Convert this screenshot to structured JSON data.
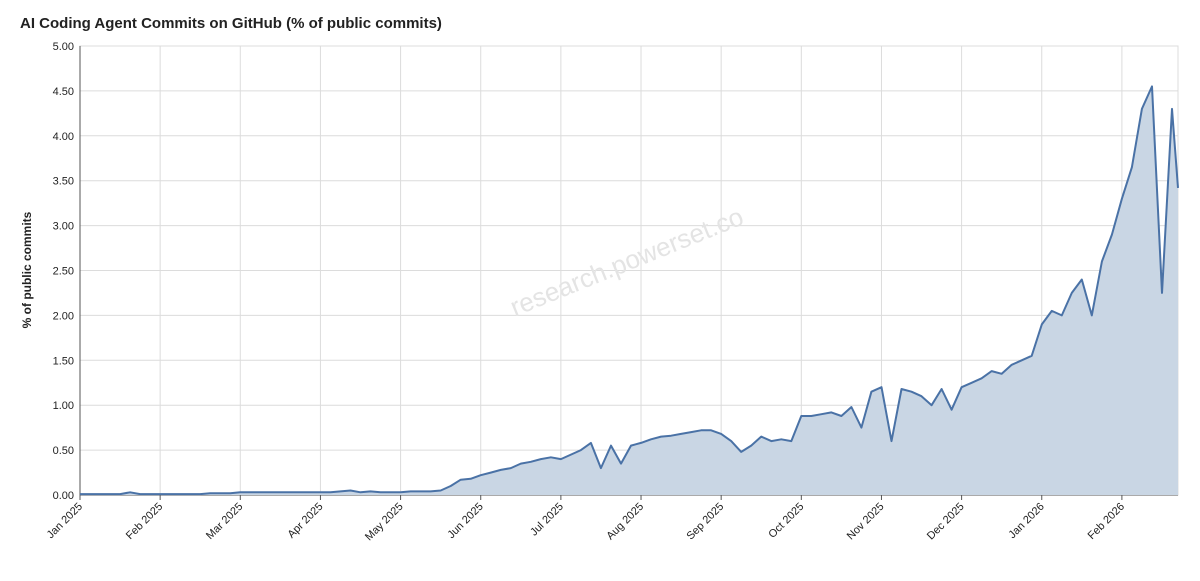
{
  "chart_data": {
    "type": "area",
    "title": "AI Coding Agent Commits on GitHub (% of public commits)",
    "y_label": "% of public commits",
    "watermark": "research.powerset.co",
    "grid": true,
    "xlim": [
      0,
      13.7
    ],
    "xticks": [
      {
        "value": 0,
        "label": "Jan 2025"
      },
      {
        "value": 1,
        "label": "Feb 2025"
      },
      {
        "value": 2,
        "label": "Mar 2025"
      },
      {
        "value": 3,
        "label": "Apr 2025"
      },
      {
        "value": 4,
        "label": "May 2025"
      },
      {
        "value": 5,
        "label": "Jun 2025"
      },
      {
        "value": 6,
        "label": "Jul 2025"
      },
      {
        "value": 7,
        "label": "Aug 2025"
      },
      {
        "value": 8,
        "label": "Sep 2025"
      },
      {
        "value": 9,
        "label": "Oct 2025"
      },
      {
        "value": 10,
        "label": "Nov 2025"
      },
      {
        "value": 11,
        "label": "Dec 2025"
      },
      {
        "value": 12,
        "label": "Jan 2026"
      },
      {
        "value": 13,
        "label": "Feb 2026"
      }
    ],
    "ylim": [
      0,
      5
    ],
    "yticks": [
      {
        "value": 0,
        "label": "0.00"
      },
      {
        "value": 0.5,
        "label": "0.50"
      },
      {
        "value": 1,
        "label": "1.00"
      },
      {
        "value": 1.5,
        "label": "1.50"
      },
      {
        "value": 2,
        "label": "2.00"
      },
      {
        "value": 2.5,
        "label": "2.50"
      },
      {
        "value": 3,
        "label": "3.00"
      },
      {
        "value": 3.5,
        "label": "3.50"
      },
      {
        "value": 4,
        "label": "4.00"
      },
      {
        "value": 4.5,
        "label": "4.50"
      },
      {
        "value": 5,
        "label": "5.00"
      }
    ],
    "x": [
      0,
      0.125,
      0.25,
      0.375,
      0.5,
      0.625,
      0.75,
      0.875,
      1,
      1.125,
      1.25,
      1.375,
      1.5,
      1.625,
      1.75,
      1.875,
      2,
      2.125,
      2.25,
      2.375,
      2.5,
      2.625,
      2.75,
      2.875,
      3,
      3.125,
      3.25,
      3.375,
      3.5,
      3.625,
      3.75,
      3.875,
      4,
      4.125,
      4.25,
      4.375,
      4.5,
      4.625,
      4.75,
      4.875,
      5,
      5.125,
      5.25,
      5.375,
      5.5,
      5.625,
      5.75,
      5.875,
      6,
      6.125,
      6.25,
      6.375,
      6.5,
      6.625,
      6.75,
      6.875,
      7,
      7.125,
      7.25,
      7.375,
      7.5,
      7.625,
      7.75,
      7.875,
      8,
      8.125,
      8.25,
      8.375,
      8.5,
      8.625,
      8.75,
      8.875,
      9,
      9.125,
      9.25,
      9.375,
      9.5,
      9.625,
      9.75,
      9.875,
      10,
      10.125,
      10.25,
      10.375,
      10.5,
      10.625,
      10.75,
      10.875,
      11,
      11.125,
      11.25,
      11.375,
      11.5,
      11.625,
      11.75,
      11.875,
      12,
      12.125,
      12.25,
      12.375,
      12.5,
      12.625,
      12.75,
      12.875,
      13,
      13.125,
      13.25,
      13.375,
      13.5,
      13.625,
      13.7
    ],
    "series": [
      {
        "color": "#4a72a6",
        "fill": "#c9d6e4",
        "values": [
          0.01,
          0.01,
          0.01,
          0.01,
          0.01,
          0.03,
          0.01,
          0.01,
          0.01,
          0.01,
          0.01,
          0.01,
          0.01,
          0.02,
          0.02,
          0.02,
          0.03,
          0.03,
          0.03,
          0.03,
          0.03,
          0.03,
          0.03,
          0.03,
          0.03,
          0.03,
          0.04,
          0.05,
          0.03,
          0.04,
          0.03,
          0.03,
          0.03,
          0.04,
          0.04,
          0.04,
          0.05,
          0.1,
          0.17,
          0.18,
          0.22,
          0.25,
          0.28,
          0.3,
          0.35,
          0.37,
          0.4,
          0.42,
          0.4,
          0.45,
          0.5,
          0.58,
          0.3,
          0.55,
          0.35,
          0.55,
          0.58,
          0.62,
          0.65,
          0.66,
          0.68,
          0.7,
          0.72,
          0.72,
          0.68,
          0.6,
          0.48,
          0.55,
          0.65,
          0.6,
          0.62,
          0.6,
          0.88,
          0.88,
          0.9,
          0.92,
          0.88,
          0.98,
          0.75,
          1.15,
          1.2,
          0.6,
          1.18,
          1.15,
          1.1,
          1.0,
          1.18,
          0.95,
          1.2,
          1.25,
          1.3,
          1.38,
          1.35,
          1.45,
          1.5,
          1.55,
          1.9,
          2.05,
          2.0,
          2.25,
          2.4,
          2.0,
          2.6,
          2.9,
          3.3,
          3.65,
          4.3,
          4.55,
          2.25,
          4.3,
          3.42
        ]
      }
    ]
  }
}
